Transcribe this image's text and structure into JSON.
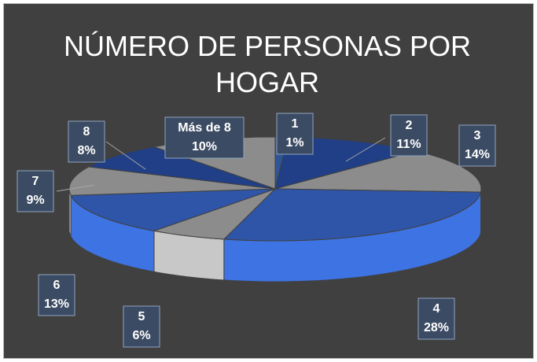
{
  "chart_data": {
    "type": "pie",
    "title": "NÚMERO DE PERSONAS POR HOGAR",
    "categories": [
      "1",
      "2",
      "3",
      "4",
      "5",
      "6",
      "7",
      "8",
      "Más de 8"
    ],
    "values": [
      1,
      11,
      14,
      28,
      6,
      13,
      9,
      8,
      10
    ],
    "value_labels": [
      "1%",
      "11%",
      "14%",
      "28%",
      "6%",
      "13%",
      "9%",
      "8%",
      "10%"
    ],
    "colors": [
      "#2f5597",
      "#203f86",
      "#8c8c8c",
      "#2e55a8",
      "#8c8c8c",
      "#2e55a8",
      "#8c8c8c",
      "#203f86",
      "#8c8c8c"
    ]
  }
}
